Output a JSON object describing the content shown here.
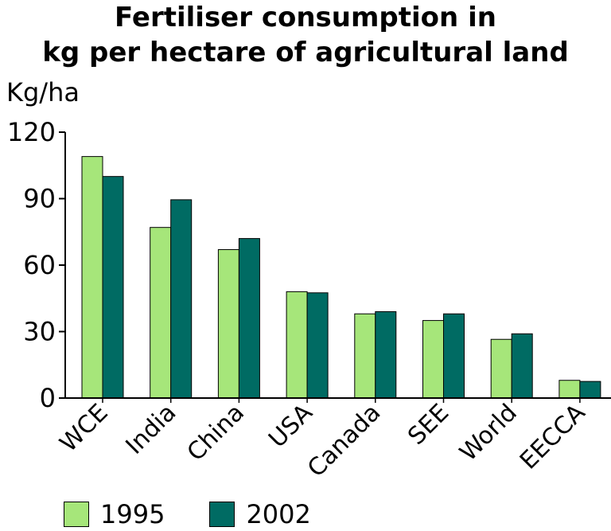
{
  "chart_data": {
    "type": "bar",
    "title": "Fertiliser consumption in",
    "subtitle": "kg per hectare of agricultural land",
    "ylabel": "Kg/ha",
    "xlabel": "",
    "ylim": [
      0,
      120
    ],
    "yticks": [
      0,
      30,
      60,
      90,
      120
    ],
    "categories": [
      "WCE",
      "India",
      "China",
      "USA",
      "Canada",
      "SEE",
      "World",
      "EECCA"
    ],
    "series": [
      {
        "name": "1995",
        "color": "#a6e67a",
        "values": [
          109,
          77,
          67,
          48,
          38,
          35,
          26.5,
          8
        ]
      },
      {
        "name": "2002",
        "color": "#006b63",
        "values": [
          100,
          89.5,
          72,
          47.5,
          39,
          38,
          29,
          7.5
        ]
      }
    ],
    "legend": "bottom-left",
    "grid": false
  }
}
